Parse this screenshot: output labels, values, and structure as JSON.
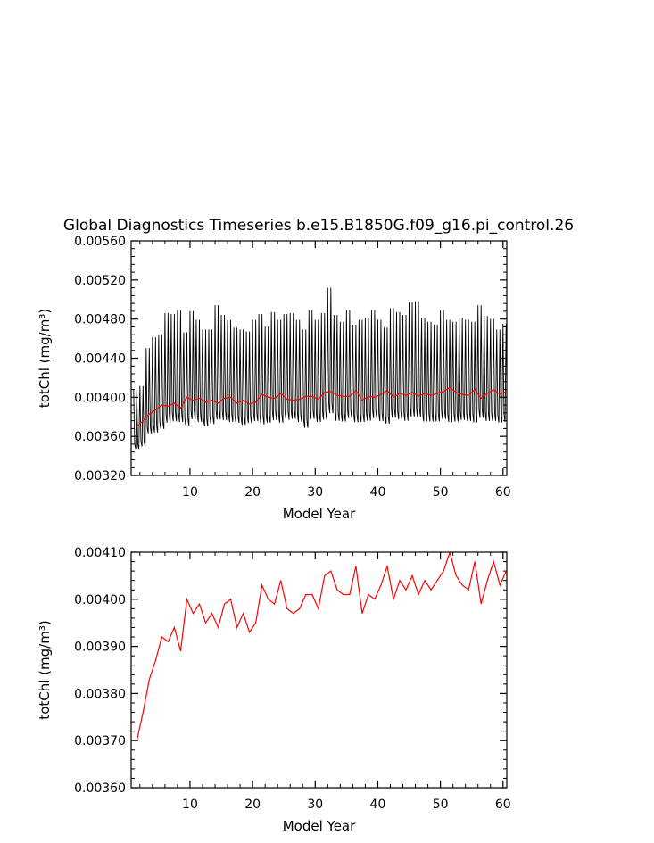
{
  "title": "Global Diagnostics Timeseries b.e15.B1850G.f09_g16.pi_control.26",
  "colors": {
    "monthly": "#000000",
    "annual": "#ff0000",
    "frame": "#000000"
  },
  "chart_data": [
    {
      "type": "line",
      "ylabel": "totChl (mg/m³)",
      "xlabel": "Model Year",
      "xlim": [
        0.6,
        60.6
      ],
      "ylim": [
        0.0032,
        0.0056
      ],
      "xticks": [
        10,
        20,
        30,
        40,
        50,
        60
      ],
      "yticks": [
        "0.00320",
        "0.00360",
        "0.00400",
        "0.00440",
        "0.00480",
        "0.00520",
        "0.00560"
      ],
      "grid": false,
      "series": [
        {
          "role": "monthly",
          "x_start": 1.0,
          "x_step": 0.08333,
          "seasonal_peaks": [
            0.00408,
            0.00412,
            0.00451,
            0.00462,
            0.00465,
            0.00487,
            0.00486,
            0.0049,
            0.00467,
            0.00489,
            0.0048,
            0.0047,
            0.0047,
            0.00495,
            0.00485,
            0.0048,
            0.00472,
            0.0047,
            0.00468,
            0.0048,
            0.00486,
            0.00473,
            0.00488,
            0.0048,
            0.00486,
            0.00487,
            0.0048,
            0.0047,
            0.0049,
            0.0048,
            0.00487,
            0.00513,
            0.00485,
            0.00478,
            0.0049,
            0.00475,
            0.0048,
            0.00482,
            0.0049,
            0.0048,
            0.00472,
            0.00492,
            0.00488,
            0.00485,
            0.00498,
            0.00499,
            0.00482,
            0.00478,
            0.00475,
            0.0049,
            0.0048,
            0.00478,
            0.00482,
            0.0048,
            0.00478,
            0.00495,
            0.00484,
            0.00481,
            0.0047,
            0.00476
          ],
          "seasonal_troughs": [
            0.0033,
            0.00332,
            0.00338,
            0.00336,
            0.0034,
            0.00342,
            0.00344,
            0.00342,
            0.00344,
            0.00346,
            0.00345,
            0.00342,
            0.00345,
            0.00344,
            0.00346,
            0.00345,
            0.00346,
            0.00344,
            0.00347,
            0.00346,
            0.0034,
            0.00346,
            0.00345,
            0.00344,
            0.00346,
            0.00347,
            0.00345,
            0.0034,
            0.00346,
            0.00345,
            0.00346,
            0.00347,
            0.00345,
            0.00346,
            0.00347,
            0.00346,
            0.00345,
            0.00346,
            0.00347,
            0.00346,
            0.00345,
            0.00347,
            0.00346,
            0.00345,
            0.00347,
            0.00346,
            0.00345,
            0.00346,
            0.00347,
            0.00346,
            0.00345,
            0.00346,
            0.00347,
            0.00346,
            0.00345,
            0.00346,
            0.00345,
            0.00346,
            0.00347,
            0.00346
          ]
        },
        {
          "role": "annual",
          "x": [
            1.5,
            2.5,
            3.5,
            4.5,
            5.5,
            6.5,
            7.5,
            8.5,
            9.5,
            10.5,
            11.5,
            12.5,
            13.5,
            14.5,
            15.5,
            16.5,
            17.5,
            18.5,
            19.5,
            20.5,
            21.5,
            22.5,
            23.5,
            24.5,
            25.5,
            26.5,
            27.5,
            28.5,
            29.5,
            30.5,
            31.5,
            32.5,
            33.5,
            34.5,
            35.5,
            36.5,
            37.5,
            38.5,
            39.5,
            40.5,
            41.5,
            42.5,
            43.5,
            44.5,
            45.5,
            46.5,
            47.5,
            48.5,
            49.5,
            50.5,
            51.5,
            52.5,
            53.5,
            54.5,
            55.5,
            56.5,
            57.5,
            58.5,
            59.5,
            60.5
          ],
          "values": [
            0.0037,
            0.00376,
            0.00383,
            0.00387,
            0.00392,
            0.00391,
            0.00394,
            0.00389,
            0.004,
            0.00397,
            0.00399,
            0.00395,
            0.00397,
            0.00394,
            0.00399,
            0.004,
            0.00394,
            0.00397,
            0.00393,
            0.00395,
            0.00403,
            0.004,
            0.00399,
            0.00404,
            0.00398,
            0.00397,
            0.00398,
            0.00401,
            0.00401,
            0.00398,
            0.00405,
            0.00406,
            0.00402,
            0.00401,
            0.00401,
            0.00407,
            0.00397,
            0.00401,
            0.004,
            0.00403,
            0.00407,
            0.004,
            0.00404,
            0.00402,
            0.00405,
            0.00401,
            0.00404,
            0.00402,
            0.00404,
            0.00406,
            0.0041,
            0.00405,
            0.00403,
            0.00402,
            0.00408,
            0.00399,
            0.00404,
            0.00408,
            0.00403,
            0.00406
          ]
        }
      ]
    },
    {
      "type": "line",
      "ylabel": "totChl (mg/m³)",
      "xlabel": "Model Year",
      "xlim": [
        0.6,
        60.6
      ],
      "ylim": [
        0.0036,
        0.0041
      ],
      "xticks": [
        10,
        20,
        30,
        40,
        50,
        60
      ],
      "yticks": [
        "0.00360",
        "0.00370",
        "0.00380",
        "0.00390",
        "0.00400",
        "0.00410"
      ],
      "grid": false,
      "series": [
        {
          "role": "annual",
          "x": [
            1.5,
            2.5,
            3.5,
            4.5,
            5.5,
            6.5,
            7.5,
            8.5,
            9.5,
            10.5,
            11.5,
            12.5,
            13.5,
            14.5,
            15.5,
            16.5,
            17.5,
            18.5,
            19.5,
            20.5,
            21.5,
            22.5,
            23.5,
            24.5,
            25.5,
            26.5,
            27.5,
            28.5,
            29.5,
            30.5,
            31.5,
            32.5,
            33.5,
            34.5,
            35.5,
            36.5,
            37.5,
            38.5,
            39.5,
            40.5,
            41.5,
            42.5,
            43.5,
            44.5,
            45.5,
            46.5,
            47.5,
            48.5,
            49.5,
            50.5,
            51.5,
            52.5,
            53.5,
            54.5,
            55.5,
            56.5,
            57.5,
            58.5,
            59.5,
            60.5
          ],
          "values": [
            0.0037,
            0.00376,
            0.00383,
            0.00387,
            0.00392,
            0.00391,
            0.00394,
            0.00389,
            0.004,
            0.00397,
            0.00399,
            0.00395,
            0.00397,
            0.00394,
            0.00399,
            0.004,
            0.00394,
            0.00397,
            0.00393,
            0.00395,
            0.00403,
            0.004,
            0.00399,
            0.00404,
            0.00398,
            0.00397,
            0.00398,
            0.00401,
            0.00401,
            0.00398,
            0.00405,
            0.00406,
            0.00402,
            0.00401,
            0.00401,
            0.00407,
            0.00397,
            0.00401,
            0.004,
            0.00403,
            0.00407,
            0.004,
            0.00404,
            0.00402,
            0.00405,
            0.00401,
            0.00404,
            0.00402,
            0.00404,
            0.00406,
            0.0041,
            0.00405,
            0.00403,
            0.00402,
            0.00408,
            0.00399,
            0.00404,
            0.00408,
            0.00403,
            0.00406
          ]
        }
      ]
    }
  ]
}
